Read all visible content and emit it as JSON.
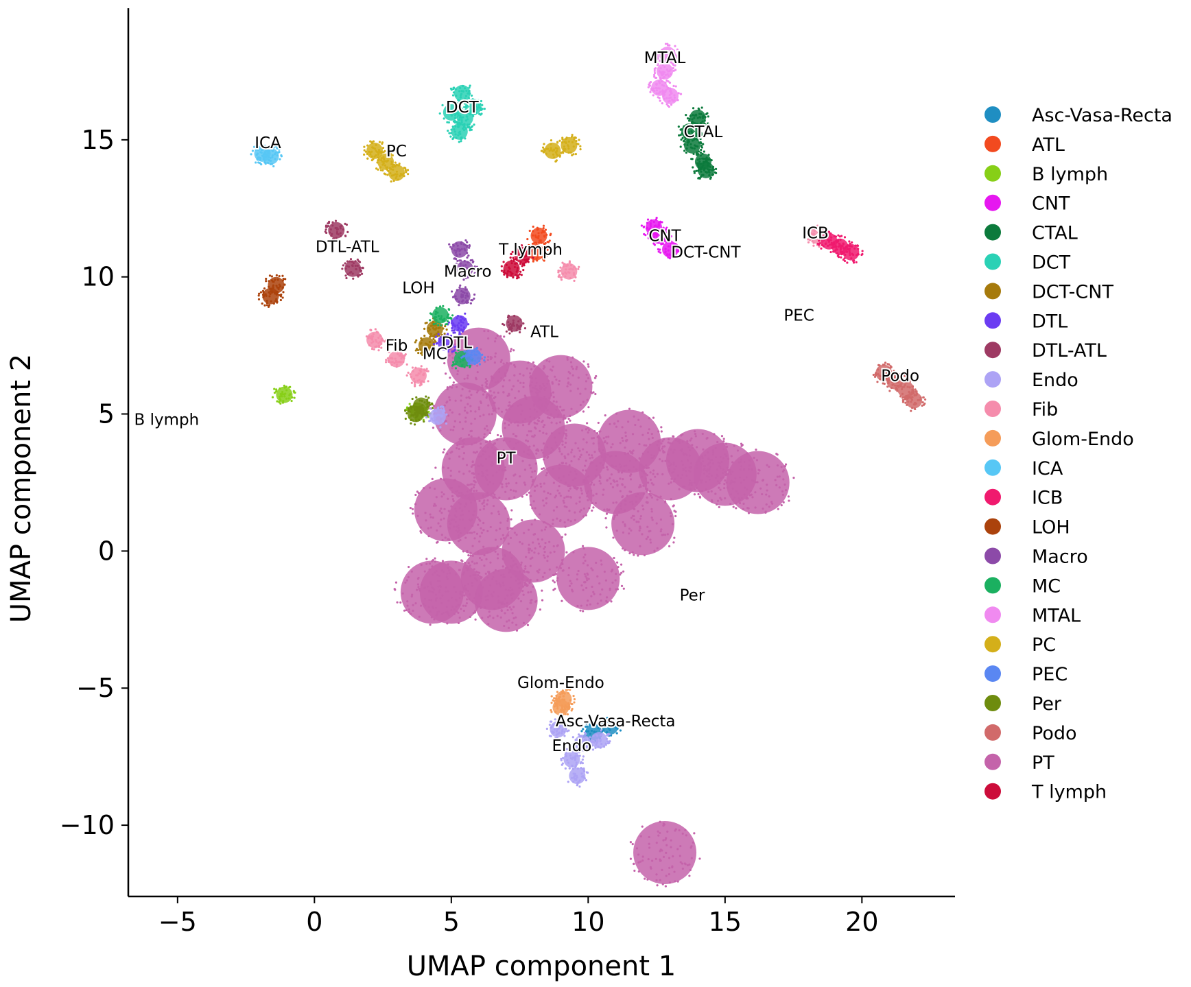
{
  "chart_data": {
    "type": "scatter",
    "title": "",
    "xlabel": "UMAP component 1",
    "ylabel": "UMAP component 2",
    "xlim": [
      -6.8,
      23.4
    ],
    "ylim": [
      -12.6,
      19.8
    ],
    "x_ticks": [
      -5,
      0,
      5,
      10,
      15,
      20
    ],
    "x_tick_labels": [
      "−5",
      "0",
      "5",
      "10",
      "15",
      "20"
    ],
    "y_ticks": [
      -10,
      -5,
      0,
      5,
      10,
      15
    ],
    "y_tick_labels": [
      "−10",
      "−5",
      "0",
      "5",
      "10",
      "15"
    ],
    "grid": false,
    "legend_position": "right",
    "series": [
      {
        "name": "Asc-Vasa-Recta",
        "color": "#1f8ec2",
        "label_pos": [
          11.0,
          -6.4
        ],
        "points": [
          [
            10.2,
            -6.6
          ],
          [
            10.8,
            -6.4
          ]
        ]
      },
      {
        "name": "ATL",
        "color": "#f24a1f",
        "label_pos": [
          8.4,
          7.8
        ],
        "points": [
          [
            8.1,
            10.9
          ],
          [
            8.2,
            11.5
          ]
        ]
      },
      {
        "name": "B lymph",
        "color": "#87cf17",
        "label_pos": [
          -5.4,
          4.6
        ],
        "points": [
          [
            3.8,
            5.1
          ],
          [
            -1.1,
            5.7
          ]
        ]
      },
      {
        "name": "CNT",
        "color": "#e617f0",
        "label_pos": [
          12.8,
          11.3
        ],
        "points": [
          [
            12.4,
            11.8
          ],
          [
            13.0,
            11.0
          ],
          [
            12.6,
            11.5
          ]
        ]
      },
      {
        "name": "CTAL",
        "color": "#0c7a3c",
        "label_pos": [
          14.2,
          15.1
        ],
        "points": [
          [
            13.8,
            14.8
          ],
          [
            14.2,
            14.2
          ],
          [
            14.0,
            15.8
          ],
          [
            13.7,
            15.3
          ],
          [
            14.3,
            13.9
          ]
        ]
      },
      {
        "name": "DCT",
        "color": "#2ad1b5",
        "label_pos": [
          5.4,
          16.0
        ],
        "points": [
          [
            5.4,
            16.7
          ],
          [
            5.5,
            15.8
          ],
          [
            5.3,
            15.3
          ],
          [
            5.8,
            16.2
          ],
          [
            5.0,
            16.0
          ]
        ]
      },
      {
        "name": "DCT-CNT",
        "color": "#a67a0c",
        "label_pos": [
          14.3,
          10.7
        ],
        "points": [
          [
            4.4,
            8.1
          ],
          [
            4.1,
            7.5
          ]
        ]
      },
      {
        "name": "DTL",
        "color": "#6b3cf2",
        "label_pos": [
          5.2,
          7.4
        ],
        "points": [
          [
            4.8,
            7.6
          ],
          [
            5.3,
            8.3
          ]
        ]
      },
      {
        "name": "DTL-ATL",
        "color": "#9e3a63",
        "label_pos": [
          1.2,
          10.9
        ],
        "points": [
          [
            0.8,
            11.7
          ],
          [
            1.4,
            10.3
          ],
          [
            7.3,
            8.3
          ]
        ]
      },
      {
        "name": "Endo",
        "color": "#ada3f5",
        "label_pos": [
          9.4,
          -7.3
        ],
        "points": [
          [
            9.6,
            -8.2
          ],
          [
            9.4,
            -7.6
          ],
          [
            9.8,
            -7.0
          ],
          [
            8.9,
            -6.5
          ],
          [
            4.5,
            4.9
          ],
          [
            10.4,
            -6.9
          ]
        ]
      },
      {
        "name": "Fib",
        "color": "#f58cac",
        "label_pos": [
          3.0,
          7.3
        ],
        "points": [
          [
            3.0,
            7.0
          ],
          [
            2.2,
            7.7
          ],
          [
            3.8,
            6.4
          ],
          [
            9.3,
            10.2
          ],
          [
            18.4,
            11.5
          ]
        ]
      },
      {
        "name": "Glom-Endo",
        "color": "#f59c59",
        "label_pos": [
          9.0,
          -5.0
        ],
        "points": [
          [
            9.0,
            -5.7
          ],
          [
            9.1,
            -5.4
          ]
        ]
      },
      {
        "name": "ICA",
        "color": "#57c7f5",
        "label_pos": [
          -1.7,
          14.7
        ],
        "points": [
          [
            -1.9,
            14.5
          ],
          [
            -1.6,
            14.4
          ]
        ]
      },
      {
        "name": "ICB",
        "color": "#f01a6e",
        "label_pos": [
          18.3,
          11.4
        ],
        "points": [
          [
            19.2,
            11.1
          ],
          [
            18.8,
            11.3
          ],
          [
            19.6,
            10.9
          ]
        ]
      },
      {
        "name": "LOH",
        "color": "#ab420c",
        "label_pos": [
          3.8,
          9.4
        ],
        "points": [
          [
            -1.6,
            9.3
          ],
          [
            -1.4,
            9.7
          ]
        ]
      },
      {
        "name": "Macro",
        "color": "#8c4aa8",
        "label_pos": [
          5.6,
          10.0
        ],
        "points": [
          [
            5.5,
            10.3
          ],
          [
            5.4,
            9.3
          ],
          [
            5.3,
            11.0
          ]
        ]
      },
      {
        "name": "MC",
        "color": "#1bb060",
        "label_pos": [
          4.4,
          7.0
        ],
        "points": [
          [
            4.6,
            8.6
          ],
          [
            5.4,
            7.0
          ]
        ]
      },
      {
        "name": "MTAL",
        "color": "#f08af0",
        "label_pos": [
          12.8,
          17.8
        ],
        "points": [
          [
            12.8,
            17.5
          ],
          [
            12.6,
            16.9
          ],
          [
            12.9,
            18.1
          ],
          [
            13.0,
            16.6
          ]
        ]
      },
      {
        "name": "PC",
        "color": "#d4af1a",
        "label_pos": [
          3.0,
          14.4
        ],
        "points": [
          [
            2.6,
            14.2
          ],
          [
            3.0,
            13.8
          ],
          [
            2.2,
            14.6
          ],
          [
            8.7,
            14.6
          ],
          [
            9.3,
            14.8
          ]
        ]
      },
      {
        "name": "PEC",
        "color": "#5a87f2",
        "label_pos": [
          17.7,
          8.4
        ],
        "points": [
          [
            5.8,
            7.1
          ]
        ]
      },
      {
        "name": "Per",
        "color": "#6e8c0e",
        "label_pos": [
          13.8,
          -1.8
        ],
        "points": [
          [
            3.7,
            5.0
          ],
          [
            3.9,
            5.3
          ]
        ]
      },
      {
        "name": "Podo",
        "color": "#d16a6a",
        "label_pos": [
          21.4,
          6.2
        ],
        "points": [
          [
            21.2,
            6.2
          ],
          [
            21.6,
            5.9
          ],
          [
            21.9,
            5.5
          ],
          [
            20.8,
            6.5
          ]
        ]
      },
      {
        "name": "PT",
        "color": "#c463aa",
        "label_pos": [
          7.0,
          3.2
        ],
        "points": [
          [
            7.0,
            3.0
          ],
          [
            6.0,
            1.0
          ],
          [
            8.0,
            0.0
          ],
          [
            5.5,
            5.0
          ],
          [
            9.0,
            2.0
          ],
          [
            6.5,
            -1.0
          ],
          [
            11.0,
            2.5
          ],
          [
            13.0,
            3.0
          ],
          [
            15.0,
            2.8
          ],
          [
            10.0,
            -1.0
          ],
          [
            5.0,
            -1.5
          ],
          [
            4.3,
            -1.5
          ],
          [
            8.0,
            4.5
          ],
          [
            7.5,
            5.8
          ],
          [
            9.0,
            6.0
          ],
          [
            6.0,
            7.0
          ],
          [
            11.5,
            4.0
          ],
          [
            4.8,
            1.5
          ],
          [
            12.0,
            1.0
          ],
          [
            9.5,
            3.5
          ],
          [
            16.2,
            2.5
          ],
          [
            14.0,
            3.3
          ],
          [
            5.8,
            3.0
          ],
          [
            7.0,
            -1.8
          ],
          [
            12.8,
            -11.0
          ]
        ]
      },
      {
        "name": "T lymph",
        "color": "#cc0c3a",
        "label_pos": [
          7.9,
          10.8
        ],
        "points": [
          [
            7.2,
            10.3
          ],
          [
            7.6,
            10.8
          ]
        ]
      }
    ],
    "annotations": [
      {
        "text": "MTAL"
      },
      {
        "text": "DCT"
      },
      {
        "text": "CTAL"
      },
      {
        "text": "ICA"
      },
      {
        "text": "PC"
      },
      {
        "text": "ICB"
      },
      {
        "text": "CNT"
      },
      {
        "text": "DCT-CNT"
      },
      {
        "text": "T lymph"
      },
      {
        "text": "DTL-ATL"
      },
      {
        "text": "Macro"
      },
      {
        "text": "LOH"
      },
      {
        "text": "PEC"
      },
      {
        "text": "ATL"
      },
      {
        "text": "Fib"
      },
      {
        "text": "DTL"
      },
      {
        "text": "MC"
      },
      {
        "text": "Podo"
      },
      {
        "text": "B lymph"
      },
      {
        "text": "PT"
      },
      {
        "text": "Per"
      },
      {
        "text": "Glom-Endo"
      },
      {
        "text": "Asc-Vasa-Recta"
      },
      {
        "text": "Endo"
      }
    ]
  }
}
